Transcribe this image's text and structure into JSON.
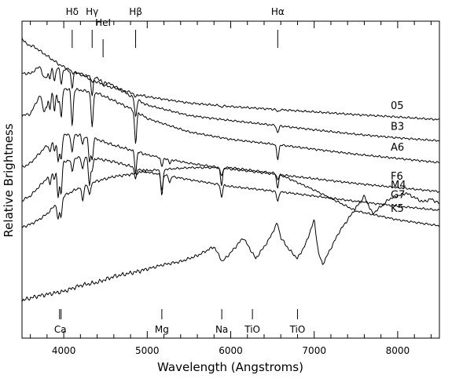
{
  "chart_data": {
    "type": "line",
    "xlabel": "Wavelength (Angstroms)",
    "ylabel": "Relative Brightness",
    "xlim": [
      3500,
      8500
    ],
    "ylim": [
      0,
      10
    ],
    "xticks": [
      4000,
      5000,
      6000,
      7000,
      8000
    ],
    "top_lines": [
      {
        "label": "Hδ",
        "x": 4101
      },
      {
        "label": "Hγ",
        "x": 4340
      },
      {
        "label": "HeI",
        "x": 4471
      },
      {
        "label": "Hβ",
        "x": 4861
      },
      {
        "label": "Hα",
        "x": 6563
      }
    ],
    "bottom_lines": [
      {
        "label": "Ca",
        "x": 3950,
        "x2": 3968
      },
      {
        "label": "Mg",
        "x": 5175
      },
      {
        "label": "Na",
        "x": 5893
      },
      {
        "label": "TiO",
        "x": 6260
      },
      {
        "label": "TiO",
        "x": 6800
      }
    ],
    "series": [
      {
        "name": "05",
        "points": [
          [
            3500,
            9.7
          ],
          [
            3550,
            9.5
          ],
          [
            3650,
            9.4
          ],
          [
            3750,
            9.2
          ],
          [
            3850,
            9.0
          ],
          [
            3950,
            8.8
          ],
          [
            4101,
            8.6
          ],
          [
            4340,
            8.3
          ],
          [
            4500,
            8.1
          ],
          [
            4700,
            7.95
          ],
          [
            4861,
            7.82
          ],
          [
            5000,
            7.73
          ],
          [
            5500,
            7.52
          ],
          [
            6000,
            7.4
          ],
          [
            6563,
            7.3
          ],
          [
            7000,
            7.22
          ],
          [
            7500,
            7.13
          ],
          [
            8000,
            7.05
          ],
          [
            8500,
            6.96
          ]
        ],
        "dips": [
          [
            4101,
            0.08
          ],
          [
            4340,
            0.08
          ],
          [
            4861,
            0.12
          ],
          [
            5890,
            0.05
          ],
          [
            6563,
            0.08
          ]
        ]
      },
      {
        "name": "B3",
        "points": [
          [
            3500,
            8.52
          ],
          [
            3600,
            8.5
          ],
          [
            3700,
            8.72
          ],
          [
            3800,
            8.75
          ],
          [
            3900,
            8.7
          ],
          [
            4000,
            8.65
          ],
          [
            4200,
            8.5
          ],
          [
            4400,
            8.35
          ],
          [
            4600,
            8.1
          ],
          [
            4861,
            7.65
          ],
          [
            5000,
            7.45
          ],
          [
            5500,
            7.1
          ],
          [
            6000,
            6.93
          ],
          [
            6563,
            6.76
          ],
          [
            7000,
            6.62
          ],
          [
            7500,
            6.47
          ],
          [
            8000,
            6.35
          ],
          [
            8500,
            6.25
          ]
        ],
        "dips": [
          [
            3750,
            0.25
          ],
          [
            3771,
            0.3
          ],
          [
            3798,
            0.35
          ],
          [
            3835,
            0.4
          ],
          [
            3889,
            0.45
          ],
          [
            3970,
            0.5
          ],
          [
            4101,
            0.55
          ],
          [
            4340,
            0.6
          ],
          [
            4471,
            0.15
          ],
          [
            4861,
            0.6
          ],
          [
            6563,
            0.25
          ]
        ]
      },
      {
        "name": "A6",
        "points": [
          [
            3500,
            7.1
          ],
          [
            3600,
            7.15
          ],
          [
            3700,
            7.7
          ],
          [
            3800,
            8.0
          ],
          [
            3900,
            8.05
          ],
          [
            4000,
            8.0
          ],
          [
            4200,
            7.95
          ],
          [
            4400,
            7.85
          ],
          [
            4600,
            7.6
          ],
          [
            4861,
            7.25
          ],
          [
            5000,
            7.0
          ],
          [
            5500,
            6.55
          ],
          [
            6000,
            6.3
          ],
          [
            6563,
            6.12
          ],
          [
            7000,
            5.97
          ],
          [
            7500,
            5.8
          ],
          [
            8000,
            5.66
          ],
          [
            8500,
            5.52
          ]
        ],
        "dips": [
          [
            3750,
            0.4
          ],
          [
            3771,
            0.5
          ],
          [
            3798,
            0.6
          ],
          [
            3835,
            0.75
          ],
          [
            3889,
            0.85
          ],
          [
            3933,
            0.5
          ],
          [
            3970,
            1.0
          ],
          [
            4101,
            1.2
          ],
          [
            4340,
            1.2
          ],
          [
            4861,
            1.1
          ],
          [
            6563,
            0.5
          ]
        ]
      },
      {
        "name": "F6",
        "points": [
          [
            3500,
            5.35
          ],
          [
            3600,
            5.5
          ],
          [
            3700,
            5.8
          ],
          [
            3800,
            6.1
          ],
          [
            3900,
            6.3
          ],
          [
            4000,
            6.45
          ],
          [
            4200,
            6.45
          ],
          [
            4400,
            6.3
          ],
          [
            4600,
            6.1
          ],
          [
            4861,
            5.9
          ],
          [
            5000,
            5.78
          ],
          [
            5500,
            5.5
          ],
          [
            6000,
            5.3
          ],
          [
            6563,
            5.12
          ],
          [
            7000,
            4.98
          ],
          [
            7500,
            4.82
          ],
          [
            8000,
            4.68
          ],
          [
            8500,
            4.55
          ]
        ],
        "dips": [
          [
            3835,
            0.3
          ],
          [
            3889,
            0.35
          ],
          [
            3933,
            0.8
          ],
          [
            3968,
            0.8
          ],
          [
            4101,
            0.6
          ],
          [
            4226,
            0.3
          ],
          [
            4308,
            0.8
          ],
          [
            4340,
            0.7
          ],
          [
            4861,
            0.7
          ],
          [
            5175,
            0.3
          ],
          [
            5270,
            0.15
          ],
          [
            5890,
            0.3
          ],
          [
            6563,
            0.45
          ]
        ]
      },
      {
        "name": "G7",
        "points": [
          [
            3500,
            4.25
          ],
          [
            3600,
            4.4
          ],
          [
            3700,
            4.7
          ],
          [
            3800,
            5.0
          ],
          [
            3900,
            5.3
          ],
          [
            4000,
            5.55
          ],
          [
            4200,
            5.7
          ],
          [
            4400,
            5.65
          ],
          [
            4600,
            5.55
          ],
          [
            4861,
            5.35
          ],
          [
            5000,
            5.2
          ],
          [
            5500,
            4.95
          ],
          [
            6000,
            4.72
          ],
          [
            6563,
            4.55
          ],
          [
            7000,
            4.4
          ],
          [
            7500,
            4.22
          ],
          [
            8000,
            4.06
          ],
          [
            8500,
            3.92
          ]
        ],
        "dips": [
          [
            3835,
            0.3
          ],
          [
            3889,
            0.3
          ],
          [
            3933,
            1.0
          ],
          [
            3968,
            1.0
          ],
          [
            4101,
            0.4
          ],
          [
            4226,
            0.4
          ],
          [
            4308,
            0.9
          ],
          [
            4340,
            0.4
          ],
          [
            4861,
            0.4
          ],
          [
            5175,
            0.5
          ],
          [
            5270,
            0.2
          ],
          [
            5890,
            0.4
          ],
          [
            6563,
            0.35
          ]
        ]
      },
      {
        "name": "K5",
        "points": [
          [
            3500,
            3.35
          ],
          [
            3600,
            3.45
          ],
          [
            3700,
            3.6
          ],
          [
            3800,
            3.8
          ],
          [
            3900,
            4.1
          ],
          [
            4000,
            4.4
          ],
          [
            4200,
            4.7
          ],
          [
            4400,
            4.9
          ],
          [
            4600,
            5.05
          ],
          [
            4861,
            5.15
          ],
          [
            5000,
            5.25
          ],
          [
            5500,
            5.35
          ],
          [
            6000,
            5.35
          ],
          [
            6563,
            5.15
          ],
          [
            7000,
            4.6
          ],
          [
            7500,
            3.9
          ],
          [
            8000,
            3.6
          ],
          [
            8500,
            3.4
          ]
        ],
        "dips": [
          [
            3933,
            0.6
          ],
          [
            3968,
            0.6
          ],
          [
            4226,
            0.5
          ],
          [
            4308,
            0.4
          ],
          [
            5175,
            0.9
          ],
          [
            5890,
            0.6
          ],
          [
            6563,
            0.2
          ]
        ]
      },
      {
        "name": "M4",
        "points": [
          [
            3500,
            0.9
          ],
          [
            3700,
            1.05
          ],
          [
            3900,
            1.15
          ],
          [
            4000,
            1.2
          ],
          [
            4200,
            1.4
          ],
          [
            4400,
            1.5
          ],
          [
            4600,
            1.7
          ],
          [
            4861,
            1.85
          ],
          [
            5000,
            1.95
          ],
          [
            5200,
            2.1
          ],
          [
            5400,
            2.2
          ],
          [
            5600,
            2.4
          ],
          [
            5800,
            2.7
          ],
          [
            5900,
            2.2
          ],
          [
            6000,
            2.5
          ],
          [
            6150,
            3.0
          ],
          [
            6300,
            2.3
          ],
          [
            6450,
            2.9
          ],
          [
            6560,
            3.5
          ],
          [
            6600,
            3.0
          ],
          [
            6700,
            2.6
          ],
          [
            6800,
            2.3
          ],
          [
            6900,
            2.8
          ],
          [
            7000,
            3.6
          ],
          [
            7050,
            2.5
          ],
          [
            7100,
            2.1
          ],
          [
            7300,
            3.2
          ],
          [
            7500,
            4.0
          ],
          [
            7600,
            4.4
          ],
          [
            7700,
            3.8
          ],
          [
            7900,
            4.3
          ],
          [
            8100,
            4.5
          ],
          [
            8300,
            4.2
          ],
          [
            8400,
            4.3
          ],
          [
            8500,
            4.15
          ]
        ],
        "dips": []
      }
    ]
  },
  "labels": {
    "xlabel": "Wavelength (Angstroms)",
    "ylabel": "Relative Brightness",
    "xticks": [
      "4000",
      "5000",
      "6000",
      "7000",
      "8000"
    ],
    "top_lines": [
      "Hδ",
      "Hγ",
      "HeI",
      "Hβ",
      "Hα"
    ],
    "bottom_lines": [
      "Ca",
      "Mg",
      "Na",
      "TiO",
      "TiO"
    ],
    "stars": [
      "05",
      "B3",
      "A6",
      "F6",
      "G7",
      "K5",
      "M4"
    ]
  }
}
